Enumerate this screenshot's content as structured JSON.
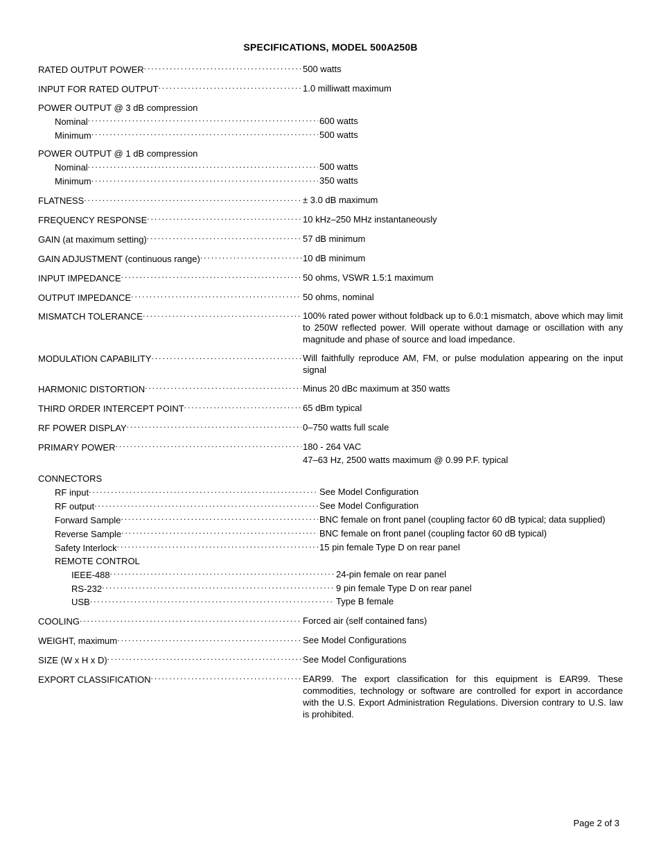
{
  "title": "SPECIFICATIONS, MODEL 500A250B",
  "footer": "Page 2 of 3",
  "groups": [
    {
      "rows": [
        {
          "label": "RATED OUTPUT POWER",
          "value": "500 watts"
        }
      ]
    },
    {
      "rows": [
        {
          "label": "INPUT FOR RATED OUTPUT",
          "value": "1.0 milliwatt maximum"
        }
      ]
    },
    {
      "rows": [
        {
          "label": "POWER OUTPUT @ 3 dB compression",
          "value": "",
          "head": true
        },
        {
          "label": "Nominal",
          "value": "600 watts",
          "indent": 1
        },
        {
          "label": "Minimum",
          "value": "500 watts",
          "indent": 1
        }
      ]
    },
    {
      "rows": [
        {
          "label": "POWER OUTPUT @ 1 dB compression",
          "value": "",
          "head": true
        },
        {
          "label": "Nominal",
          "value": "500 watts",
          "indent": 1
        },
        {
          "label": "Minimum",
          "value": "350 watts",
          "indent": 1
        }
      ]
    },
    {
      "rows": [
        {
          "label": "FLATNESS",
          "value": "± 3.0 dB maximum"
        }
      ]
    },
    {
      "rows": [
        {
          "label": "FREQUENCY RESPONSE",
          "value": "10 kHz–250 MHz instantaneously"
        }
      ]
    },
    {
      "rows": [
        {
          "label": "GAIN (at maximum setting)",
          "value": "57 dB minimum"
        }
      ]
    },
    {
      "rows": [
        {
          "label": "GAIN ADJUSTMENT (continuous range)",
          "value": "10 dB minimum"
        }
      ]
    },
    {
      "rows": [
        {
          "label": "INPUT IMPEDANCE",
          "value": "50 ohms, VSWR 1.5:1 maximum"
        }
      ]
    },
    {
      "rows": [
        {
          "label": "OUTPUT IMPEDANCE",
          "value": "50 ohms, nominal"
        }
      ]
    },
    {
      "rows": [
        {
          "label": "MISMATCH TOLERANCE",
          "value": "100% rated power without foldback up to 6.0:1 mismatch, above which may limit to 250W reflected power.  Will operate without damage or oscillation with any magnitude and phase of source and load impedance.",
          "justify": true
        }
      ]
    },
    {
      "rows": [
        {
          "label": "MODULATION CAPABILITY",
          "value": "Will faithfully reproduce AM, FM, or pulse modulation appearing on the input signal",
          "justify": true
        }
      ]
    },
    {
      "rows": [
        {
          "label": "HARMONIC DISTORTION",
          "value": "Minus 20 dBc maximum at 350 watts"
        }
      ]
    },
    {
      "rows": [
        {
          "label": "THIRD ORDER INTERCEPT POINT",
          "value": "65 dBm typical"
        }
      ]
    },
    {
      "rows": [
        {
          "label": "RF POWER DISPLAY",
          "value": "0–750 watts full scale"
        }
      ]
    },
    {
      "rows": [
        {
          "label": "PRIMARY POWER",
          "value": "180 - 264 VAC"
        },
        {
          "label": "",
          "value": "47–63 Hz, 2500 watts maximum @ 0.99 P.F. typical",
          "nolabel": true
        }
      ]
    },
    {
      "rows": [
        {
          "label": "CONNECTORS",
          "value": "",
          "head": true
        },
        {
          "label": "RF input",
          "value": "See Model Configuration",
          "indent": 1
        },
        {
          "label": "RF output",
          "value": "See Model Configuration",
          "indent": 1
        },
        {
          "label": "Forward Sample",
          "value": "BNC female on front panel (coupling factor 60 dB typical; data supplied)",
          "indent": 1
        },
        {
          "label": "Reverse Sample",
          "value": "BNC female on front panel (coupling factor 60 dB typical)",
          "indent": 1
        },
        {
          "label": "Safety Interlock",
          "value": "15 pin female Type D on rear panel",
          "indent": 1
        },
        {
          "label": "REMOTE CONTROL",
          "value": "",
          "indent": 1,
          "head": true
        },
        {
          "label": "IEEE-488",
          "value": "24-pin female on rear panel",
          "indent": 2
        },
        {
          "label": "RS-232",
          "value": "9 pin female Type D on rear panel",
          "indent": 2
        },
        {
          "label": "USB",
          "value": "Type B female",
          "indent": 2
        }
      ]
    },
    {
      "rows": [
        {
          "label": "COOLING",
          "value": "Forced air (self contained fans)"
        }
      ]
    },
    {
      "rows": [
        {
          "label": "WEIGHT, maximum",
          "value": "See Model Configurations"
        }
      ]
    },
    {
      "rows": [
        {
          "label": "SIZE (W x H x D)",
          "value": "See Model Configurations"
        }
      ]
    },
    {
      "rows": [
        {
          "label": "EXPORT CLASSIFICATION",
          "value": "EAR99.   The export classification for this equipment is EAR99.   These commodities, technology or software are controlled for export in accordance with the U.S. Export Administration Regulations. Diversion contrary to U.S. law is prohibited.",
          "justify": true
        }
      ]
    }
  ]
}
